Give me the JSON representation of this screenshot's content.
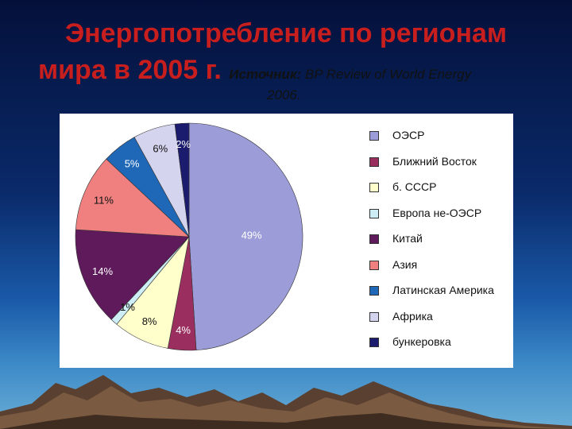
{
  "title": {
    "line1": "Энергопотребление по регионам",
    "line2": "мира в 2005 г.",
    "source_label": "Источник:",
    "source_text": "BP Review of World Energy",
    "source_year": "2006."
  },
  "chart_data": {
    "type": "pie",
    "labels": [
      "ОЭСР",
      "Ближний Восток",
      "б. СССР",
      "Европа не-ОЭСР",
      "Китай",
      "Азия",
      "Латинская Америка",
      "Африка",
      "бункеровка"
    ],
    "values": [
      49,
      4,
      8,
      1,
      14,
      11,
      5,
      6,
      2
    ],
    "value_labels": [
      "49%",
      "4%",
      "8%",
      "1%",
      "14%",
      "11%",
      "5%",
      "6%",
      "2%"
    ],
    "colors": [
      "#9c9cd8",
      "#9a2e5e",
      "#ffffcc",
      "#cdeef6",
      "#5e1a5a",
      "#f08080",
      "#1f68b8",
      "#d4d4ee",
      "#1c1c6e"
    ],
    "legend_position": "right"
  }
}
